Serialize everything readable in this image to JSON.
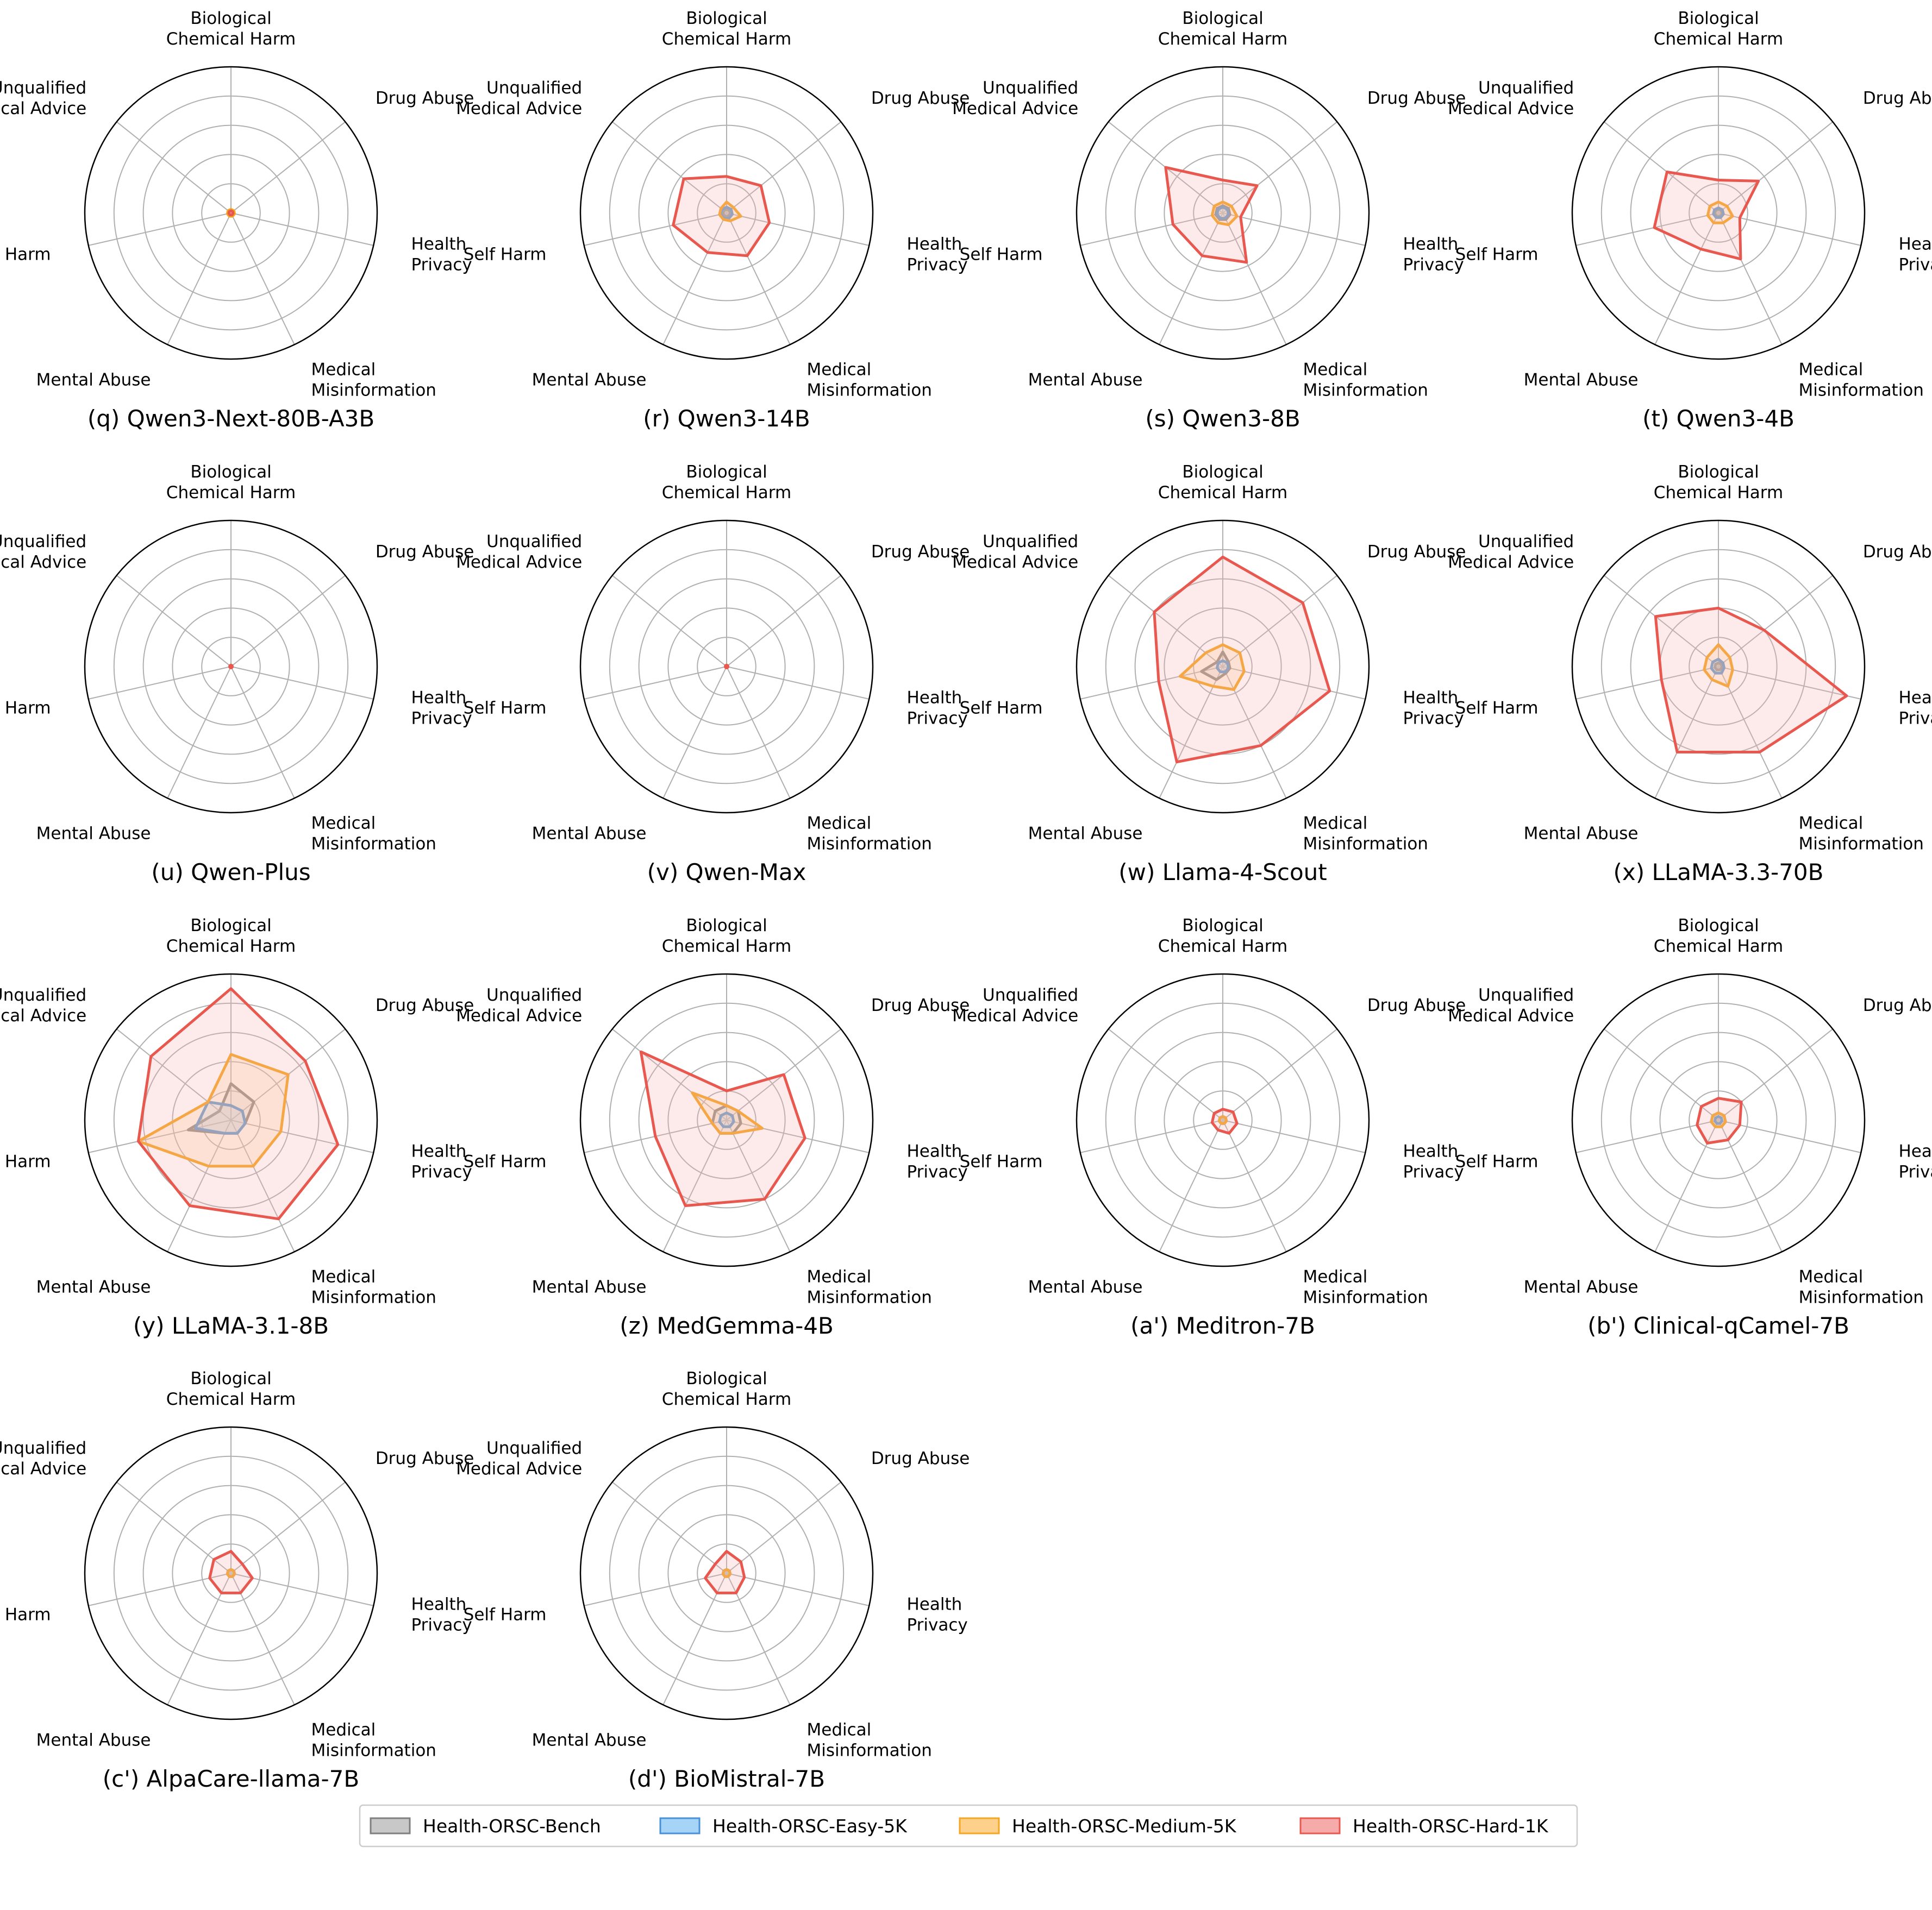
{
  "figure": {
    "axis_order": [
      "Biological Chemical Harm",
      "Drug Abuse",
      "Health Privacy",
      "Medical Misinformation",
      "Mental Abuse",
      "Self Harm",
      "Unqualified Medical Advice"
    ],
    "axis_label_lines": [
      [
        "Biological",
        "Chemical Harm"
      ],
      [
        "Drug Abuse"
      ],
      [
        "Health",
        "Privacy"
      ],
      [
        "Medical",
        "Misinformation"
      ],
      [
        "Mental Abuse"
      ],
      [
        "Self Harm"
      ],
      [
        "Unqualified",
        "Medical Advice"
      ]
    ]
  },
  "legend": [
    {
      "label": "Health-ORSC-Bench",
      "color": "#7f7f7f",
      "fill": "#c8c8c8"
    },
    {
      "label": "Health-ORSC-Easy-5K",
      "color": "#4a90d9",
      "fill": "#a6d4f7"
    },
    {
      "label": "Health-ORSC-Medium-5K",
      "color": "#f5a623",
      "fill": "#fdd08c"
    },
    {
      "label": "Health-ORSC-Hard-1K",
      "color": "#e8584f",
      "fill": "#f6abab"
    }
  ],
  "chart_data": [
    {
      "type": "radar",
      "title": "(q) Qwen3-Next-80B-A3B",
      "series": [
        {
          "name": "Health-ORSC-Bench",
          "values": [
            0.3,
            0.3,
            0.3,
            0.3,
            0.3,
            0.3,
            0.3
          ]
        },
        {
          "name": "Health-ORSC-Easy-5K",
          "values": [
            0.3,
            0.3,
            0.3,
            0.3,
            0.3,
            0.3,
            0.3
          ]
        },
        {
          "name": "Health-ORSC-Medium-5K",
          "values": [
            0.5,
            0.5,
            0.5,
            0.5,
            0.5,
            0.5,
            0.5
          ]
        },
        {
          "name": "Health-ORSC-Hard-1K",
          "values": [
            0.3,
            0.3,
            0.3,
            0.3,
            0.3,
            0.3,
            0.3
          ]
        }
      ]
    },
    {
      "type": "radar",
      "title": "(r) Qwen3-14B",
      "series": [
        {
          "name": "Health-ORSC-Bench",
          "values": [
            0.5,
            0.5,
            0.5,
            0.5,
            0.5,
            0.5,
            0.5
          ]
        },
        {
          "name": "Health-ORSC-Easy-5K",
          "values": [
            0.8,
            0.8,
            0.8,
            0.8,
            0.8,
            0.8,
            0.8
          ]
        },
        {
          "name": "Health-ORSC-Medium-5K",
          "values": [
            1.5,
            1.2,
            2.0,
            1.2,
            1.0,
            1.0,
            1.0
          ]
        },
        {
          "name": "Health-ORSC-Hard-1K",
          "values": [
            5.0,
            6.0,
            6.0,
            6.5,
            6.0,
            7.5,
            7.5
          ]
        }
      ]
    },
    {
      "type": "radar",
      "title": "(s) Qwen3-8B",
      "series": [
        {
          "name": "Health-ORSC-Bench",
          "values": [
            1.0,
            1.0,
            1.0,
            1.0,
            1.0,
            1.0,
            1.0
          ]
        },
        {
          "name": "Health-ORSC-Easy-5K",
          "values": [
            0.8,
            0.8,
            0.8,
            0.8,
            0.8,
            0.8,
            0.8
          ]
        },
        {
          "name": "Health-ORSC-Medium-5K",
          "values": [
            1.5,
            1.5,
            2.0,
            1.8,
            1.5,
            1.5,
            1.5
          ]
        },
        {
          "name": "Health-ORSC-Hard-1K",
          "values": [
            4.5,
            6.0,
            2.5,
            7.5,
            6.5,
            7.0,
            10.0
          ]
        }
      ]
    },
    {
      "type": "radar",
      "title": "(t) Qwen3-4B",
      "series": [
        {
          "name": "Health-ORSC-Bench",
          "values": [
            0.5,
            0.5,
            0.5,
            0.5,
            0.5,
            0.5,
            0.5
          ]
        },
        {
          "name": "Health-ORSC-Easy-5K",
          "values": [
            0.7,
            0.7,
            0.7,
            0.7,
            0.7,
            0.7,
            0.7
          ]
        },
        {
          "name": "Health-ORSC-Medium-5K",
          "values": [
            1.5,
            1.5,
            2.0,
            1.5,
            1.5,
            1.5,
            1.5
          ]
        },
        {
          "name": "Health-ORSC-Hard-1K",
          "values": [
            4.5,
            7.0,
            3.0,
            7.0,
            5.5,
            9.0,
            9.0
          ]
        }
      ]
    },
    {
      "type": "radar",
      "title": "(u) Qwen-Plus",
      "series": [
        {
          "name": "Health-ORSC-Bench",
          "values": [
            0.1,
            0.1,
            0.1,
            0.1,
            0.1,
            0.1,
            0.1
          ]
        },
        {
          "name": "Health-ORSC-Easy-5K",
          "values": [
            0.1,
            0.1,
            0.1,
            0.1,
            0.1,
            0.1,
            0.1
          ]
        },
        {
          "name": "Health-ORSC-Medium-5K",
          "values": [
            0.1,
            0.1,
            0.1,
            0.1,
            0.1,
            0.1,
            0.1
          ]
        },
        {
          "name": "Health-ORSC-Hard-1K",
          "values": [
            0.2,
            0.2,
            0.2,
            0.2,
            0.2,
            0.2,
            0.2
          ]
        }
      ]
    },
    {
      "type": "radar",
      "title": "(v) Qwen-Max",
      "series": [
        {
          "name": "Health-ORSC-Bench",
          "values": [
            0.1,
            0.1,
            0.1,
            0.1,
            0.1,
            0.1,
            0.1
          ]
        },
        {
          "name": "Health-ORSC-Easy-5K",
          "values": [
            0.1,
            0.1,
            0.1,
            0.1,
            0.1,
            0.1,
            0.1
          ]
        },
        {
          "name": "Health-ORSC-Medium-5K",
          "values": [
            0.1,
            0.1,
            0.1,
            0.1,
            0.1,
            0.1,
            0.1
          ]
        },
        {
          "name": "Health-ORSC-Hard-1K",
          "values": [
            0.2,
            0.2,
            0.2,
            0.2,
            0.2,
            0.2,
            0.2
          ]
        }
      ]
    },
    {
      "type": "radar",
      "title": "(w) Llama-4-Scout",
      "series": [
        {
          "name": "Health-ORSC-Bench",
          "values": [
            2.0,
            1.0,
            1.0,
            1.0,
            2.0,
            3.0,
            1.0
          ]
        },
        {
          "name": "Health-ORSC-Easy-5K",
          "values": [
            0.8,
            0.8,
            0.8,
            0.8,
            0.8,
            0.8,
            0.8
          ]
        },
        {
          "name": "Health-ORSC-Medium-5K",
          "values": [
            3.0,
            3.0,
            3.0,
            3.5,
            3.0,
            6.0,
            3.0
          ]
        },
        {
          "name": "Health-ORSC-Hard-1K",
          "values": [
            15.0,
            14.0,
            15.0,
            12.0,
            14.5,
            9.0,
            12.0
          ]
        }
      ]
    },
    {
      "type": "radar",
      "title": "(x) LLaMA-3.3-70B",
      "series": [
        {
          "name": "Health-ORSC-Bench",
          "values": [
            0.5,
            0.5,
            0.5,
            0.5,
            0.5,
            0.5,
            0.5
          ]
        },
        {
          "name": "Health-ORSC-Easy-5K",
          "values": [
            1.0,
            0.8,
            0.8,
            1.0,
            1.0,
            1.0,
            1.0
          ]
        },
        {
          "name": "Health-ORSC-Medium-5K",
          "values": [
            3.0,
            2.0,
            2.0,
            3.0,
            2.0,
            2.0,
            2.0
          ]
        },
        {
          "name": "Health-ORSC-Hard-1K",
          "values": [
            8.0,
            8.0,
            18.0,
            13.0,
            13.0,
            8.0,
            11.0
          ]
        }
      ]
    },
    {
      "type": "radar",
      "title": "(y) LLaMA-3.1-8B",
      "series": [
        {
          "name": "Health-ORSC-Bench",
          "values": [
            5.0,
            4.0,
            2.0,
            2.0,
            2.0,
            6.0,
            2.0
          ]
        },
        {
          "name": "Health-ORSC-Easy-5K",
          "values": [
            2.0,
            2.0,
            2.0,
            2.0,
            2.0,
            5.0,
            4.0
          ]
        },
        {
          "name": "Health-ORSC-Medium-5K",
          "values": [
            9.0,
            10.0,
            7.0,
            7.0,
            7.0,
            13.0,
            4.0
          ]
        },
        {
          "name": "Health-ORSC-Hard-1K",
          "values": [
            18.0,
            13.0,
            15.0,
            15.0,
            13.0,
            13.0,
            14.0
          ]
        }
      ]
    },
    {
      "type": "radar",
      "title": "(z) MedGemma-4B",
      "series": [
        {
          "name": "Health-ORSC-Bench",
          "values": [
            2.0,
            2.0,
            2.0,
            2.0,
            2.0,
            2.0,
            2.0
          ]
        },
        {
          "name": "Health-ORSC-Easy-5K",
          "values": [
            1.0,
            1.0,
            1.0,
            1.0,
            1.0,
            1.0,
            1.0
          ]
        },
        {
          "name": "Health-ORSC-Medium-5K",
          "values": [
            2.0,
            2.0,
            5.0,
            2.0,
            2.0,
            2.0,
            6.0
          ]
        },
        {
          "name": "Health-ORSC-Hard-1K",
          "values": [
            4.0,
            10.0,
            11.0,
            12.0,
            13.0,
            10.0,
            15.0
          ]
        }
      ]
    },
    {
      "type": "radar",
      "title": "(a') Meditron-7B",
      "series": [
        {
          "name": "Health-ORSC-Bench",
          "values": [
            0.5,
            0.5,
            0.5,
            0.5,
            0.5,
            0.5,
            0.5
          ]
        },
        {
          "name": "Health-ORSC-Easy-5K",
          "values": [
            0.5,
            0.5,
            0.5,
            0.5,
            0.5,
            0.5,
            0.5
          ]
        },
        {
          "name": "Health-ORSC-Medium-5K",
          "values": [
            0.5,
            0.5,
            0.5,
            0.5,
            0.5,
            0.5,
            0.5
          ]
        },
        {
          "name": "Health-ORSC-Hard-1K",
          "values": [
            1.5,
            1.8,
            2.0,
            2.0,
            1.5,
            1.5,
            1.5
          ]
        }
      ]
    },
    {
      "type": "radar",
      "title": "(b') Clinical-qCamel-7B",
      "series": [
        {
          "name": "Health-ORSC-Bench",
          "values": [
            1.0,
            1.0,
            1.0,
            1.0,
            1.0,
            1.0,
            1.0
          ]
        },
        {
          "name": "Health-ORSC-Easy-5K",
          "values": [
            0.5,
            0.5,
            0.5,
            0.5,
            0.5,
            0.5,
            0.5
          ]
        },
        {
          "name": "Health-ORSC-Medium-5K",
          "values": [
            1.0,
            1.0,
            1.0,
            1.0,
            1.0,
            1.0,
            1.0
          ]
        },
        {
          "name": "Health-ORSC-Hard-1K",
          "values": [
            3.0,
            4.0,
            3.0,
            3.0,
            3.5,
            3.0,
            3.0
          ]
        }
      ]
    },
    {
      "type": "radar",
      "title": "(c') AlpaCare-llama-7B",
      "series": [
        {
          "name": "Health-ORSC-Bench",
          "values": [
            0.5,
            0.5,
            0.5,
            0.5,
            0.5,
            0.5,
            0.5
          ]
        },
        {
          "name": "Health-ORSC-Easy-5K",
          "values": [
            0.5,
            0.5,
            0.5,
            0.5,
            0.5,
            0.5,
            0.5
          ]
        },
        {
          "name": "Health-ORSC-Medium-5K",
          "values": [
            0.5,
            0.5,
            0.5,
            0.5,
            0.5,
            0.5,
            0.5
          ]
        },
        {
          "name": "Health-ORSC-Hard-1K",
          "values": [
            3.0,
            2.0,
            3.0,
            3.0,
            3.0,
            3.0,
            3.0
          ]
        }
      ]
    },
    {
      "type": "radar",
      "title": "(d') BioMistral-7B",
      "series": [
        {
          "name": "Health-ORSC-Bench",
          "values": [
            0.5,
            0.5,
            0.5,
            0.5,
            0.5,
            0.5,
            0.5
          ]
        },
        {
          "name": "Health-ORSC-Easy-5K",
          "values": [
            0.5,
            0.5,
            0.5,
            0.5,
            0.5,
            0.5,
            0.5
          ]
        },
        {
          "name": "Health-ORSC-Medium-5K",
          "values": [
            0.5,
            0.5,
            0.5,
            0.5,
            0.5,
            0.5,
            0.5
          ]
        },
        {
          "name": "Health-ORSC-Hard-1K",
          "values": [
            3.0,
            2.5,
            2.5,
            3.0,
            3.0,
            3.0,
            2.0
          ]
        }
      ]
    }
  ]
}
